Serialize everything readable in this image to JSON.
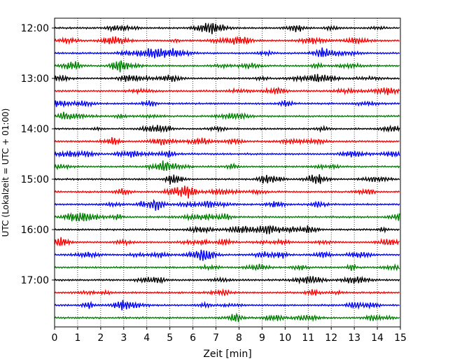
{
  "chart_data": {
    "type": "line",
    "title": "",
    "xlabel": "Zeit  [min]",
    "ylabel": "UTC (Lokalzeit = UTC + 01:00)",
    "xlim": [
      0,
      15
    ],
    "x_ticks": [
      "0",
      "1",
      "2",
      "3",
      "4",
      "5",
      "6",
      "7",
      "8",
      "9",
      "10",
      "11",
      "12",
      "13",
      "14",
      "15"
    ],
    "y_tick_labels": [
      "12:00",
      "13:00",
      "14:00",
      "15:00",
      "16:00",
      "17:00"
    ],
    "trace_interval_min": 15,
    "start_time": "12:00",
    "trace_count": 24,
    "trace_colors": [
      "#000000",
      "#ff0000",
      "#0000ff",
      "#008000"
    ],
    "grid": "vertical dotted lines at each minute",
    "legend": "none"
  }
}
